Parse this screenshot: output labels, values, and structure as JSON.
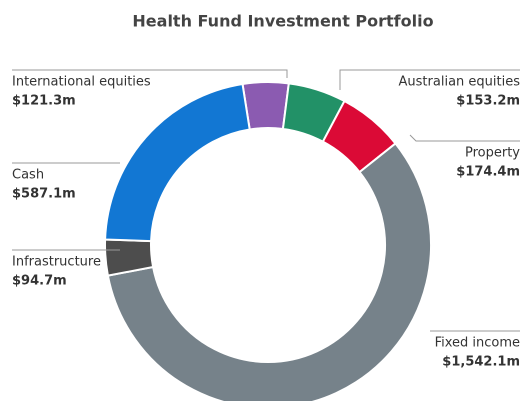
{
  "chart_data": {
    "type": "donut",
    "title": "Health Fund Investment Portfolio",
    "categories": [
      "International equities",
      "Australian equities",
      "Property",
      "Fixed income",
      "Infrastructure",
      "Cash"
    ],
    "values": [
      121.3,
      153.2,
      174.4,
      1542.1,
      94.7,
      587.1
    ],
    "value_labels": [
      "$121.3m",
      "$153.2m",
      "$174.4m",
      "$1,542.1m",
      "$94.7m",
      "$587.1m"
    ],
    "colors": [
      "#8b5bb1",
      "#229167",
      "#db0a36",
      "#76828a",
      "#4d4d4d",
      "#1277d3"
    ]
  }
}
